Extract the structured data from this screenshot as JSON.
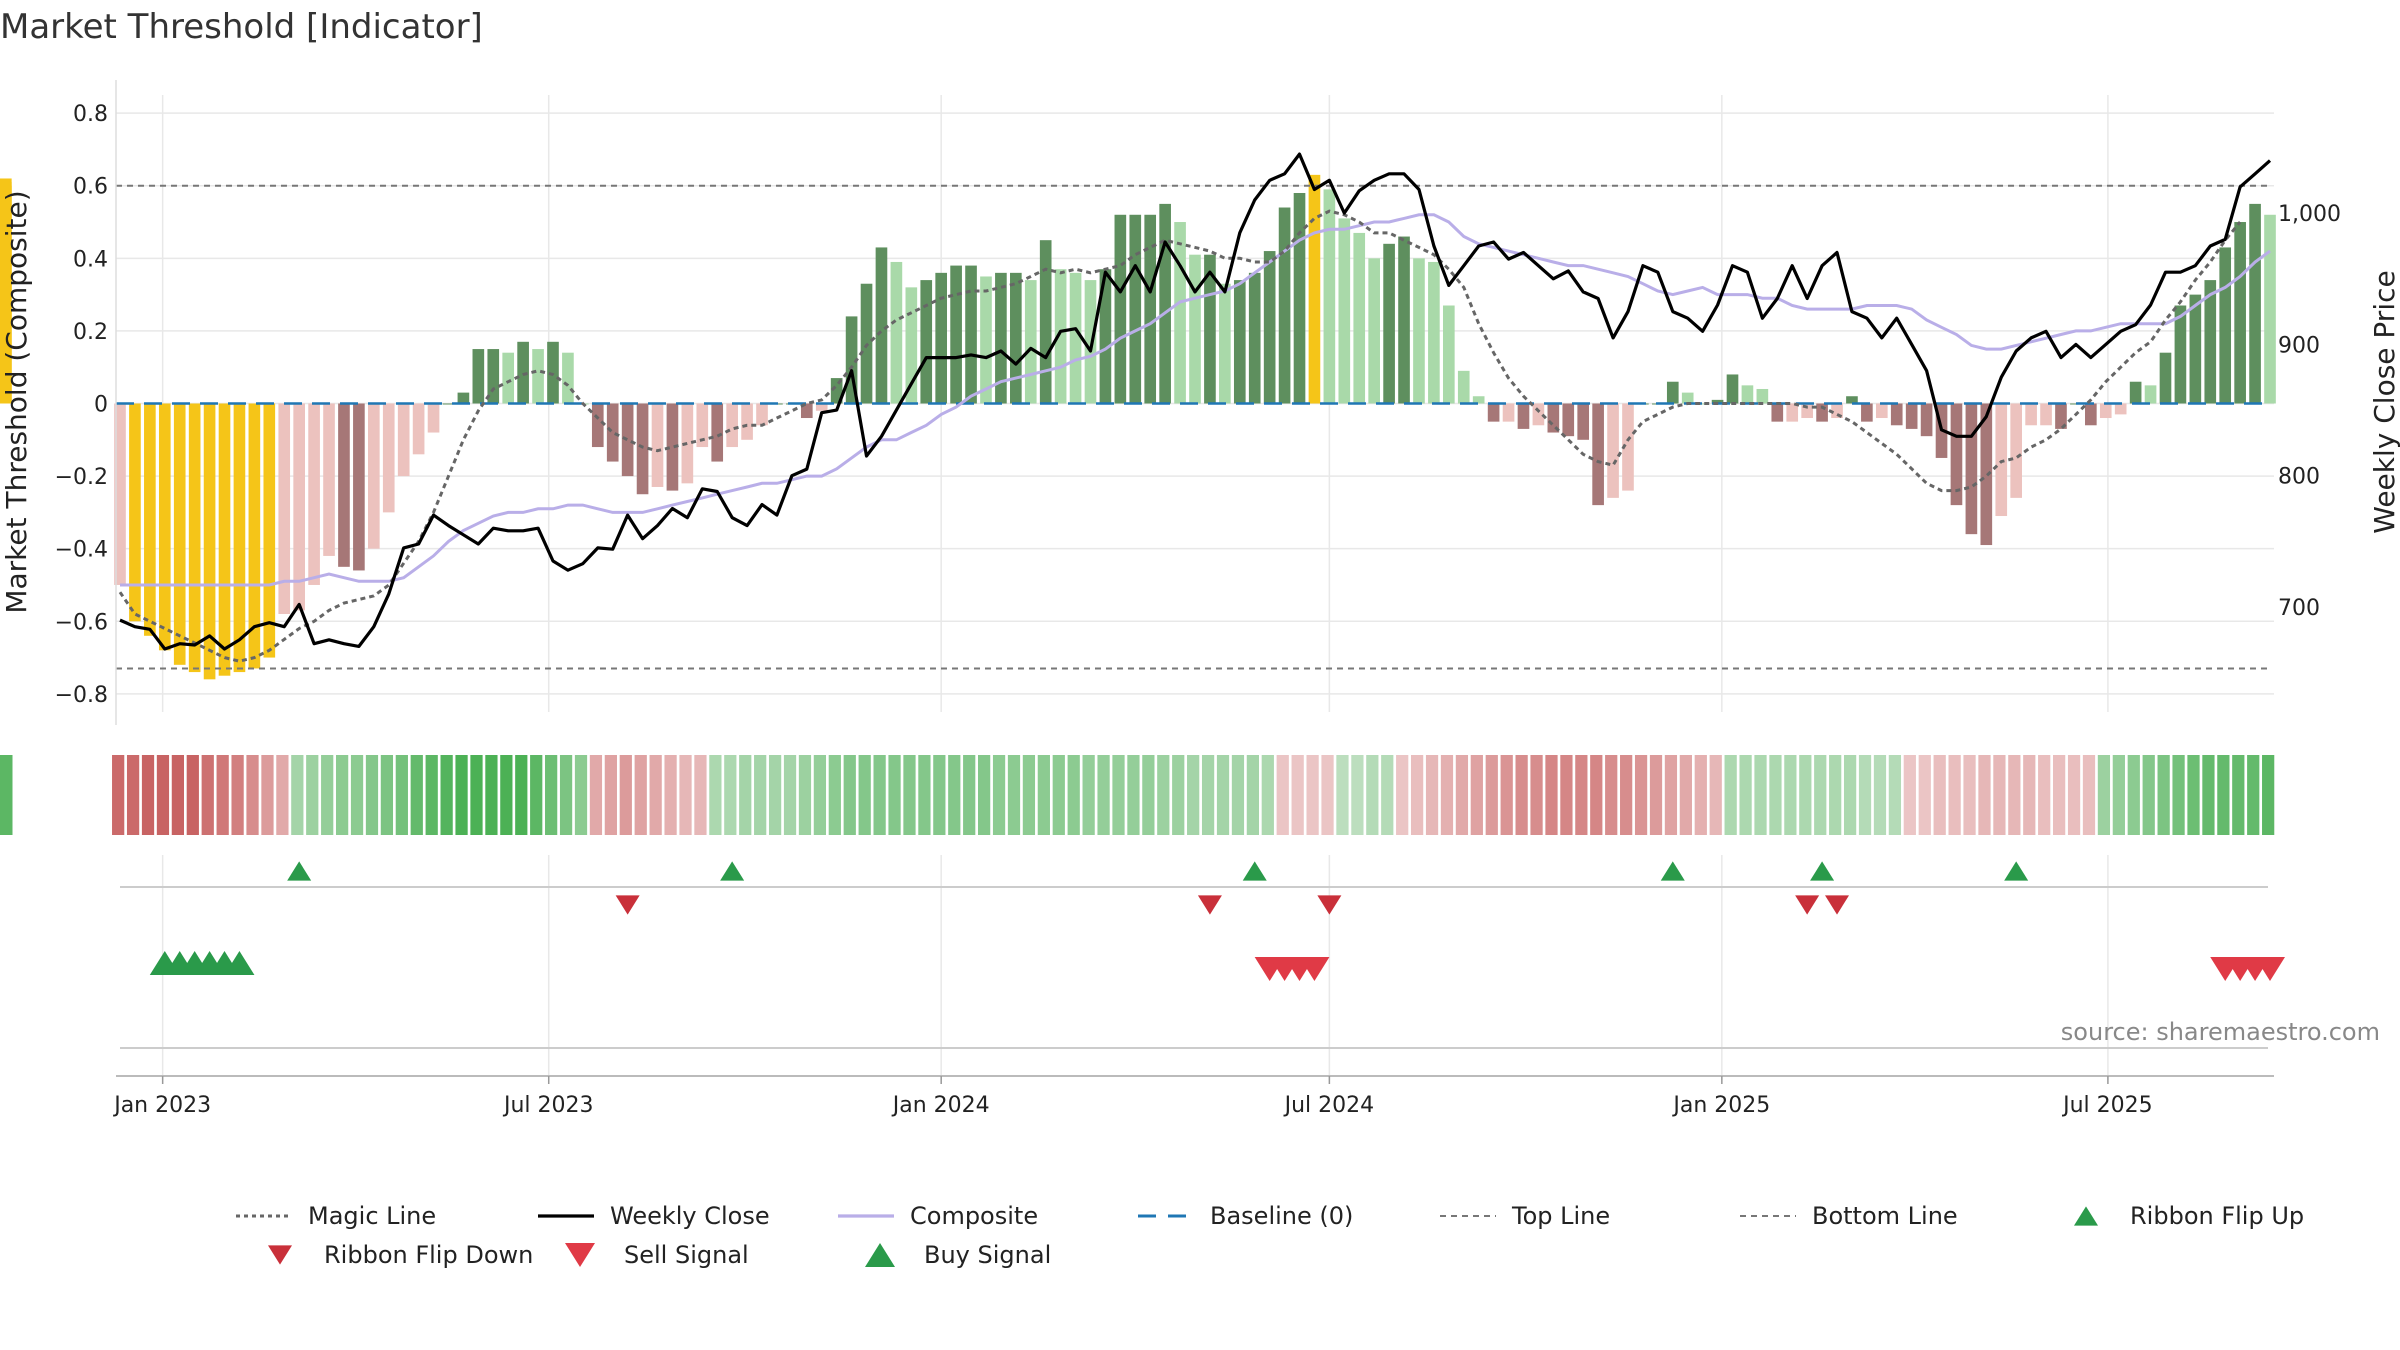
{
  "chart_data": {
    "type": "bar",
    "title": "Market Threshold [Indicator]",
    "ylabel": "Market Threshold (Composite)",
    "y2label": "Weekly Close Price",
    "ylim": [
      -0.85,
      0.85
    ],
    "y2lim": [
      620,
      1090
    ],
    "yticks": [
      0.8,
      0.6,
      0.4,
      0.2,
      0,
      -0.2,
      -0.4,
      -0.6,
      -0.8
    ],
    "ytick_labels": [
      "0.8",
      "0.6",
      "0.4",
      "0.2",
      "0",
      "−0.2",
      "−0.4",
      "−0.6",
      "−0.8"
    ],
    "y2ticks": [
      700,
      800,
      900,
      1000
    ],
    "y2tick_labels": [
      "700",
      "800",
      "900",
      "1,000"
    ],
    "xticks": [
      {
        "date": "2023-01-01",
        "label": "Jan 2023"
      },
      {
        "date": "2023-07-01",
        "label": "Jul 2023"
      },
      {
        "date": "2024-01-01",
        "label": "Jan 2024"
      },
      {
        "date": "2024-07-01",
        "label": "Jul 2024"
      },
      {
        "date": "2025-01-01",
        "label": "Jan 2025"
      },
      {
        "date": "2025-07-01",
        "label": "Jul 2025"
      }
    ],
    "dates": [
      "2022-12-12",
      "2022-12-19",
      "2022-12-26",
      "2023-01-02",
      "2023-01-09",
      "2023-01-16",
      "2023-01-23",
      "2023-01-30",
      "2023-02-06",
      "2023-02-13",
      "2023-02-20",
      "2023-02-27",
      "2023-03-06",
      "2023-03-13",
      "2023-03-20",
      "2023-03-27",
      "2023-04-03",
      "2023-04-10",
      "2023-04-17",
      "2023-04-24",
      "2023-05-01",
      "2023-05-08",
      "2023-05-15",
      "2023-05-22",
      "2023-05-29",
      "2023-06-05",
      "2023-06-12",
      "2023-06-19",
      "2023-06-26",
      "2023-07-03",
      "2023-07-10",
      "2023-07-17",
      "2023-07-24",
      "2023-07-31",
      "2023-08-07",
      "2023-08-14",
      "2023-08-21",
      "2023-08-28",
      "2023-09-04",
      "2023-09-11",
      "2023-09-18",
      "2023-09-25",
      "2023-10-02",
      "2023-10-09",
      "2023-10-16",
      "2023-10-23",
      "2023-10-30",
      "2023-11-06",
      "2023-11-13",
      "2023-11-20",
      "2023-11-27",
      "2023-12-04",
      "2023-12-11",
      "2023-12-18",
      "2023-12-25",
      "2024-01-01",
      "2024-01-08",
      "2024-01-15",
      "2024-01-22",
      "2024-01-29",
      "2024-02-05",
      "2024-02-12",
      "2024-02-19",
      "2024-02-26",
      "2024-03-04",
      "2024-03-11",
      "2024-03-18",
      "2024-03-25",
      "2024-04-01",
      "2024-04-08",
      "2024-04-15",
      "2024-04-22",
      "2024-04-29",
      "2024-05-06",
      "2024-05-13",
      "2024-05-20",
      "2024-05-27",
      "2024-06-03",
      "2024-06-10",
      "2024-06-17",
      "2024-06-24",
      "2024-07-01",
      "2024-07-08",
      "2024-07-15",
      "2024-07-22",
      "2024-07-29",
      "2024-08-05",
      "2024-08-12",
      "2024-08-19",
      "2024-08-26",
      "2024-09-02",
      "2024-09-09",
      "2024-09-16",
      "2024-09-23",
      "2024-09-30",
      "2024-10-07",
      "2024-10-14",
      "2024-10-21",
      "2024-10-28",
      "2024-11-04",
      "2024-11-11",
      "2024-11-18",
      "2024-11-25",
      "2024-12-02",
      "2024-12-09",
      "2024-12-16",
      "2024-12-23",
      "2024-12-30",
      "2025-01-06",
      "2025-01-13",
      "2025-01-20",
      "2025-01-27",
      "2025-02-03",
      "2025-02-10",
      "2025-02-17",
      "2025-02-24",
      "2025-03-03",
      "2025-03-10",
      "2025-03-17",
      "2025-03-24",
      "2025-03-31",
      "2025-04-07",
      "2025-04-14",
      "2025-04-21",
      "2025-04-28",
      "2025-05-05",
      "2025-05-12",
      "2025-05-19",
      "2025-05-26",
      "2025-06-02",
      "2025-06-09",
      "2025-06-16",
      "2025-06-23",
      "2025-06-30",
      "2025-07-07",
      "2025-07-14",
      "2025-07-21",
      "2025-07-28",
      "2025-08-04",
      "2025-08-11",
      "2025-08-18",
      "2025-08-25",
      "2025-09-01",
      "2025-09-08",
      "2025-09-15"
    ],
    "composite": [
      -0.5,
      -0.6,
      -0.64,
      -0.68,
      -0.72,
      -0.74,
      -0.76,
      -0.75,
      -0.74,
      -0.73,
      -0.7,
      -0.58,
      -0.57,
      -0.5,
      -0.42,
      -0.45,
      -0.46,
      -0.4,
      -0.3,
      -0.2,
      -0.14,
      -0.08,
      0.0,
      0.03,
      0.15,
      0.15,
      0.14,
      0.17,
      0.15,
      0.17,
      0.14,
      0.0,
      -0.12,
      -0.16,
      -0.2,
      -0.25,
      -0.23,
      -0.24,
      -0.22,
      -0.12,
      -0.16,
      -0.12,
      -0.1,
      -0.06,
      0.0,
      0.0,
      -0.04,
      -0.02,
      0.07,
      0.24,
      0.33,
      0.43,
      0.39,
      0.32,
      0.34,
      0.36,
      0.38,
      0.38,
      0.35,
      0.36,
      0.36,
      0.34,
      0.45,
      0.37,
      0.36,
      0.34,
      0.37,
      0.52,
      0.52,
      0.52,
      0.55,
      0.5,
      0.41,
      0.41,
      0.33,
      0.34,
      0.36,
      0.42,
      0.54,
      0.58,
      0.63,
      0.59,
      0.51,
      0.47,
      0.4,
      0.44,
      0.46,
      0.4,
      0.39,
      0.27,
      0.09,
      0.02,
      -0.05,
      -0.05,
      -0.07,
      -0.06,
      -0.08,
      -0.09,
      -0.1,
      -0.28,
      -0.26,
      -0.24,
      0.0,
      0.0,
      0.06,
      0.03,
      0.0,
      0.01,
      0.08,
      0.05,
      0.04,
      -0.05,
      -0.05,
      -0.04,
      -0.05,
      -0.04,
      0.02,
      -0.05,
      -0.04,
      -0.06,
      -0.07,
      -0.09,
      -0.15,
      -0.28,
      -0.36,
      -0.39,
      -0.31,
      -0.26,
      -0.06,
      -0.06,
      -0.07,
      0.0,
      -0.06,
      -0.04,
      -0.03,
      0.06,
      0.05,
      0.14,
      0.27,
      0.3,
      0.34,
      0.43,
      0.5,
      0.55,
      0.52,
      0.6,
      0.61,
      0.62
    ],
    "weekly_close": [
      690,
      685,
      683,
      668,
      672,
      671,
      678,
      668,
      675,
      685,
      688,
      685,
      702,
      672,
      675,
      672,
      670,
      685,
      710,
      745,
      748,
      770,
      762,
      755,
      748,
      760,
      758,
      758,
      760,
      735,
      728,
      733,
      745,
      744,
      770,
      752,
      762,
      775,
      768,
      790,
      788,
      768,
      762,
      778,
      770,
      800,
      805,
      848,
      850,
      880,
      815,
      830,
      850,
      870,
      890,
      890,
      890,
      892,
      890,
      895,
      885,
      897,
      890,
      910,
      912,
      895,
      955,
      940,
      960,
      940,
      978,
      960,
      940,
      955,
      940,
      985,
      1010,
      1025,
      1030,
      1045,
      1018,
      1025,
      1000,
      1017,
      1025,
      1030,
      1030,
      1018,
      975,
      945,
      960,
      975,
      978,
      965,
      970,
      960,
      950,
      956,
      940,
      935,
      905,
      925,
      960,
      955,
      925,
      920,
      910,
      930,
      960,
      955,
      920,
      935,
      960,
      935,
      960,
      970,
      925,
      920,
      905,
      920,
      900,
      880,
      835,
      830,
      830,
      845,
      875,
      895,
      905,
      910,
      890,
      900,
      890,
      900,
      910,
      915,
      930,
      955,
      955,
      960,
      975,
      980,
      1020,
      1030,
      1040,
      1040,
      1060
    ],
    "composite_smooth": [
      -0.5,
      -0.5,
      -0.5,
      -0.5,
      -0.5,
      -0.5,
      -0.5,
      -0.5,
      -0.5,
      -0.5,
      -0.5,
      -0.49,
      -0.49,
      -0.48,
      -0.47,
      -0.48,
      -0.49,
      -0.49,
      -0.49,
      -0.48,
      -0.45,
      -0.42,
      -0.38,
      -0.35,
      -0.33,
      -0.31,
      -0.3,
      -0.3,
      -0.29,
      -0.29,
      -0.28,
      -0.28,
      -0.29,
      -0.3,
      -0.3,
      -0.3,
      -0.29,
      -0.28,
      -0.27,
      -0.26,
      -0.25,
      -0.24,
      -0.23,
      -0.22,
      -0.22,
      -0.21,
      -0.2,
      -0.2,
      -0.18,
      -0.15,
      -0.12,
      -0.1,
      -0.1,
      -0.08,
      -0.06,
      -0.03,
      -0.01,
      0.02,
      0.04,
      0.06,
      0.07,
      0.08,
      0.09,
      0.1,
      0.12,
      0.13,
      0.15,
      0.18,
      0.2,
      0.22,
      0.25,
      0.28,
      0.29,
      0.3,
      0.31,
      0.33,
      0.36,
      0.39,
      0.42,
      0.45,
      0.47,
      0.48,
      0.48,
      0.49,
      0.5,
      0.5,
      0.51,
      0.52,
      0.52,
      0.5,
      0.46,
      0.44,
      0.43,
      0.42,
      0.41,
      0.4,
      0.39,
      0.38,
      0.38,
      0.37,
      0.36,
      0.35,
      0.33,
      0.31,
      0.3,
      0.31,
      0.32,
      0.3,
      0.3,
      0.3,
      0.29,
      0.29,
      0.27,
      0.26,
      0.26,
      0.26,
      0.26,
      0.27,
      0.27,
      0.27,
      0.26,
      0.23,
      0.21,
      0.19,
      0.16,
      0.15,
      0.15,
      0.16,
      0.17,
      0.18,
      0.19,
      0.2,
      0.2,
      0.21,
      0.22,
      0.22,
      0.22,
      0.22,
      0.24,
      0.27,
      0.3,
      0.32,
      0.35,
      0.39,
      0.42,
      0.46,
      0.5
    ],
    "magic_line": [
      -0.52,
      -0.58,
      -0.6,
      -0.62,
      -0.64,
      -0.66,
      -0.68,
      -0.7,
      -0.71,
      -0.7,
      -0.68,
      -0.65,
      -0.62,
      -0.6,
      -0.57,
      -0.55,
      -0.54,
      -0.53,
      -0.5,
      -0.44,
      -0.38,
      -0.3,
      -0.2,
      -0.1,
      -0.02,
      0.04,
      0.06,
      0.08,
      0.09,
      0.08,
      0.05,
      0.0,
      -0.04,
      -0.08,
      -0.1,
      -0.12,
      -0.13,
      -0.12,
      -0.11,
      -0.1,
      -0.09,
      -0.07,
      -0.06,
      -0.06,
      -0.04,
      -0.02,
      0.0,
      0.01,
      0.05,
      0.1,
      0.16,
      0.2,
      0.23,
      0.25,
      0.27,
      0.29,
      0.3,
      0.31,
      0.31,
      0.32,
      0.33,
      0.35,
      0.37,
      0.36,
      0.37,
      0.36,
      0.37,
      0.38,
      0.41,
      0.43,
      0.45,
      0.44,
      0.43,
      0.42,
      0.4,
      0.4,
      0.39,
      0.39,
      0.42,
      0.47,
      0.51,
      0.53,
      0.52,
      0.5,
      0.47,
      0.47,
      0.45,
      0.43,
      0.41,
      0.37,
      0.32,
      0.22,
      0.14,
      0.07,
      0.02,
      -0.02,
      -0.06,
      -0.1,
      -0.14,
      -0.16,
      -0.17,
      -0.1,
      -0.05,
      -0.03,
      -0.01,
      0.0,
      0.0,
      0.0,
      0.0,
      0.0,
      0.0,
      0.0,
      0.0,
      -0.01,
      -0.01,
      -0.03,
      -0.05,
      -0.08,
      -0.11,
      -0.14,
      -0.18,
      -0.22,
      -0.24,
      -0.24,
      -0.23,
      -0.2,
      -0.16,
      -0.15,
      -0.12,
      -0.1,
      -0.07,
      -0.03,
      0.01,
      0.06,
      0.1,
      0.14,
      0.17,
      0.23,
      0.28,
      0.34,
      0.39,
      0.45,
      0.5
    ],
    "ribbon": [
      -0.85,
      -0.85,
      -0.9,
      -0.9,
      -0.9,
      -0.9,
      -0.8,
      -0.75,
      -0.7,
      -0.6,
      -0.5,
      -0.4,
      0.35,
      0.4,
      0.45,
      0.5,
      0.5,
      0.55,
      0.6,
      0.65,
      0.75,
      0.8,
      0.85,
      0.9,
      0.9,
      0.9,
      0.9,
      0.9,
      0.8,
      0.7,
      0.6,
      0.5,
      -0.4,
      -0.45,
      -0.5,
      -0.45,
      -0.4,
      -0.35,
      -0.3,
      -0.3,
      0.3,
      0.3,
      0.35,
      0.35,
      0.35,
      0.35,
      0.4,
      0.45,
      0.5,
      0.55,
      0.55,
      0.55,
      0.55,
      0.55,
      0.55,
      0.55,
      0.55,
      0.55,
      0.55,
      0.5,
      0.5,
      0.5,
      0.5,
      0.5,
      0.5,
      0.45,
      0.45,
      0.45,
      0.45,
      0.45,
      0.4,
      0.4,
      0.35,
      0.35,
      0.35,
      0.35,
      0.35,
      0.3,
      -0.2,
      -0.2,
      -0.2,
      -0.2,
      0.2,
      0.2,
      0.25,
      0.25,
      -0.2,
      -0.25,
      -0.3,
      -0.35,
      -0.4,
      -0.45,
      -0.5,
      -0.55,
      -0.6,
      -0.6,
      -0.65,
      -0.65,
      -0.65,
      -0.65,
      -0.6,
      -0.6,
      -0.55,
      -0.5,
      -0.45,
      -0.4,
      -0.35,
      -0.3,
      0.3,
      0.3,
      0.3,
      0.3,
      0.3,
      0.3,
      0.3,
      0.3,
      0.3,
      0.25,
      0.25,
      0.25,
      -0.2,
      -0.2,
      -0.25,
      -0.25,
      -0.25,
      -0.3,
      -0.3,
      -0.3,
      -0.3,
      -0.25,
      -0.25,
      -0.25,
      -0.25,
      0.4,
      0.45,
      0.5,
      0.55,
      0.6,
      0.65,
      0.7,
      0.75,
      0.75,
      0.75,
      0.75,
      0.8,
      0.8,
      0.8,
      0.8,
      0.8,
      0.8,
      0.8,
      0.8
    ],
    "top_line": 0.6,
    "bottom_line": -0.73,
    "ribbon_flip_up_dates": [
      "2023-03-06",
      "2023-09-25",
      "2024-05-27",
      "2024-12-09",
      "2025-02-17",
      "2025-05-19"
    ],
    "ribbon_flip_down_dates": [
      "2023-08-07",
      "2024-05-06",
      "2024-07-01",
      "2025-02-10",
      "2025-02-24"
    ],
    "buy_signal_dates": [
      "2023-01-02",
      "2023-01-09",
      "2023-01-16",
      "2023-01-23",
      "2023-01-30",
      "2023-02-06"
    ],
    "sell_signal_dates": [
      "2024-06-03",
      "2024-06-10",
      "2024-06-17",
      "2024-06-24",
      "2025-08-25",
      "2025-09-01",
      "2025-09-08",
      "2025-09-15"
    ],
    "colors": {
      "bar_pos_strong": "#5e8f5e",
      "bar_pos_light": "#a9d9a9",
      "bar_neg_strong": "#a67777",
      "bar_neg_light": "#ecc2be",
      "bar_extreme": "#f5c518",
      "weekly_close": "#000000",
      "composite_line": "#b9aee8",
      "magic_line": "#666666",
      "baseline": "#1f77b4",
      "threshold_lines": "#777777",
      "flip_up": "#2a9a4a",
      "flip_down": "#c9303a",
      "buy": "#2a9a4a",
      "sell": "#e03a46",
      "grid": "#e8e8e8"
    },
    "legend": [
      {
        "label": "Magic Line",
        "kind": "dotted-line",
        "color": "#666666"
      },
      {
        "label": "Weekly Close",
        "kind": "solid-line",
        "color": "#000000"
      },
      {
        "label": "Composite",
        "kind": "solid-line",
        "color": "#b9aee8"
      },
      {
        "label": "Baseline (0)",
        "kind": "dashed-line",
        "color": "#1f77b4"
      },
      {
        "label": "Top Line",
        "kind": "dashed-thin",
        "color": "#777777"
      },
      {
        "label": "Bottom Line",
        "kind": "dashed-thin",
        "color": "#777777"
      },
      {
        "label": "Ribbon Flip Up",
        "kind": "triangle-up",
        "color": "#2a9a4a"
      },
      {
        "label": "Ribbon Flip Down",
        "kind": "triangle-down",
        "color": "#c9303a"
      },
      {
        "label": "Sell Signal",
        "kind": "triangle-down-big",
        "color": "#e03a46"
      },
      {
        "label": "Buy Signal",
        "kind": "triangle-up-big",
        "color": "#2a9a4a"
      }
    ],
    "legend_position": "bottom",
    "grid": true
  },
  "source": "source: sharemaestro.com"
}
